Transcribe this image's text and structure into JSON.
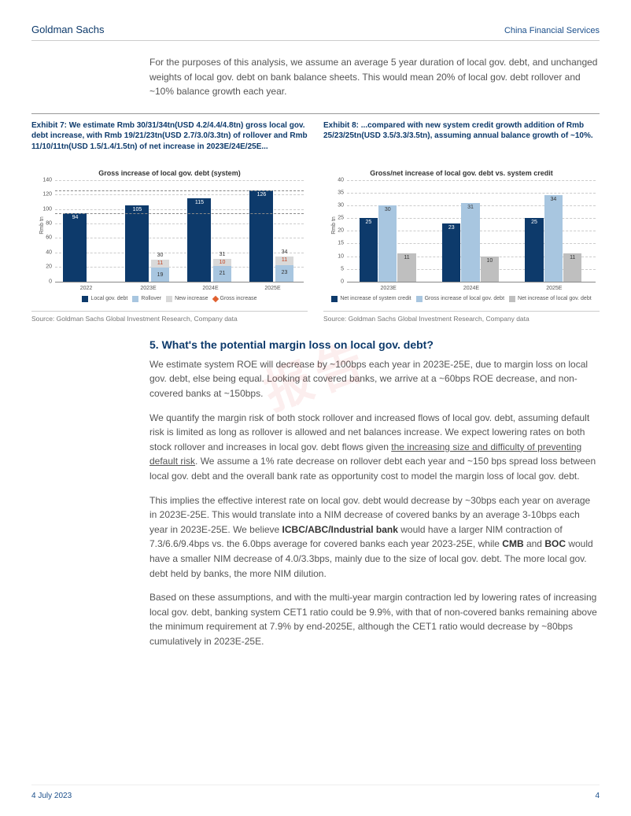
{
  "header": {
    "brand": "Goldman Sachs",
    "doc_type": "China Financial Services"
  },
  "intro": "For the purposes of this analysis, we assume an average 5 year duration of local gov. debt, and unchanged weights of local gov. debt on bank balance sheets. This would mean 20% of local gov. debt rollover and ~10% balance growth each year.",
  "exhibit7": {
    "title": "Exhibit 7: We estimate Rmb 30/31/34tn(USD 4.2/4.4/4.8tn) gross local gov. debt increase, with Rmb 19/21/23tn(USD 2.7/3.0/3.3tn) of rollover and Rmb 11/10/11tn(USD 1.5/1.4/1.5tn) of net increase in 2023E/24E/25E...",
    "chart_title": "Gross increase of local gov. debt (system)",
    "ylabel": "Rmb tn",
    "ymax": 140,
    "ytick_step": 20,
    "categories": [
      "2022",
      "2023E",
      "2024E",
      "2025E"
    ],
    "local_debt": [
      94,
      105,
      115,
      126
    ],
    "rollover": [
      null,
      19,
      21,
      23
    ],
    "new_increase": [
      null,
      11,
      10,
      11
    ],
    "gross_increase": [
      null,
      30,
      31,
      34
    ],
    "colors": {
      "local_debt": "#0d3a6b",
      "rollover": "#a8c6e0",
      "new_increase": "#d9d9d9",
      "gross_increase": "#e06030"
    },
    "legend": [
      "Local gov. debt",
      "Rollover",
      "New increase",
      "Gross increase"
    ],
    "source": "Source: Goldman Sachs Global Investment Research, Company data"
  },
  "exhibit8": {
    "title": "Exhibit 8: ...compared with new  system credit growth addition of Rmb 25/23/25tn(USD 3.5/3.3/3.5tn), assuming annual balance growth of ~10%.",
    "chart_title": "Gross/net increase of local gov. debt vs. system credit",
    "ylabel": "Rmb tn",
    "ymax": 40,
    "ytick_step": 5,
    "categories": [
      "2023E",
      "2024E",
      "2025E"
    ],
    "net_system": [
      25,
      23,
      25
    ],
    "gross_local": [
      30,
      31,
      34
    ],
    "net_local": [
      11,
      10,
      11
    ],
    "colors": {
      "net_system": "#0d3a6b",
      "gross_local": "#a8c6e0",
      "net_local": "#bfbfbf"
    },
    "legend": [
      "Net increase of system credit",
      "Gross increase of local gov. debt",
      "Net increase of local gov. debt"
    ],
    "source": "Source: Goldman Sachs Global Investment Research, Company data"
  },
  "section": {
    "heading": "5. What's the potential margin loss on local gov. debt?",
    "p1": "We estimate system ROE will decrease by ~100bps each year in 2023E-25E, due to margin loss on local gov. debt, else being equal. Looking at covered banks, we arrive at a ~60bps ROE decrease, and non-covered banks at ~150bps.",
    "p2a": "We quantify the margin risk of both stock rollover and increased flows of local gov. debt, assuming default risk is limited as long as rollover is allowed and net balances increase. We expect lowering rates on both stock rollover and increases in local gov. debt flows given ",
    "p2u": "the increasing size and difficulty of preventing default risk",
    "p2b": ". We assume a 1% rate decrease on rollover debt each year and ~150 bps spread loss between local gov. debt and the overall bank rate as opportunity cost to model the margin loss of local gov. debt.",
    "p3a": "This implies the effective interest rate on local gov. debt would decrease by ~30bps each year on average in 2023E-25E. This would translate into a NIM decrease of covered banks by an average 3-10bps each year in 2023E-25E. We believe ",
    "p3b1": "ICBC/ABC/Industrial bank",
    "p3c": " would have a larger NIM contraction of 7.3/6.6/9.4bps vs. the 6.0bps average for covered banks each year 2023-25E, while ",
    "p3b2": "CMB",
    "p3d": " and ",
    "p3b3": "BOC",
    "p3e": " would have a smaller NIM decrease of 4.0/3.3bps, mainly due to the size of local gov. debt. The more local gov. debt held by banks, the more NIM dilution.",
    "p4": "Based on these assumptions, and with the multi-year margin contraction led by lowering rates of increasing local gov. debt, banking system CET1 ratio could be 9.9%, with that of non-covered banks remaining above the minimum requirement at 7.9% by end-2025E, although the CET1 ratio would decrease by ~80bps cumulatively in 2023E-25E."
  },
  "footer": {
    "date": "4 July 2023",
    "page": "4"
  }
}
